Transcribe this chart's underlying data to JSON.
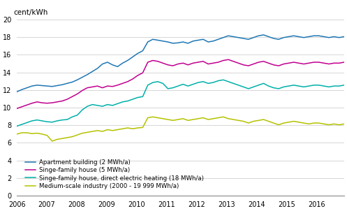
{
  "ylabel": "cent/kWh",
  "ylim": [
    0,
    20
  ],
  "yticks": [
    0,
    2,
    4,
    6,
    8,
    10,
    12,
    14,
    16,
    18,
    20
  ],
  "xlim_start": 2006.0,
  "xlim_end": 2016.92,
  "xtick_years": [
    2006,
    2007,
    2008,
    2009,
    2010,
    2011,
    2012,
    2013,
    2014,
    2015,
    2016
  ],
  "series": [
    {
      "label": "Apartment building (2 MWh/a)",
      "color": "#1f77b4",
      "data": [
        11.8,
        12.05,
        12.25,
        12.45,
        12.55,
        12.5,
        12.45,
        12.4,
        12.5,
        12.6,
        12.75,
        12.9,
        13.15,
        13.45,
        13.75,
        14.1,
        14.45,
        14.95,
        15.15,
        14.85,
        14.65,
        15.05,
        15.35,
        15.75,
        16.15,
        16.45,
        17.45,
        17.75,
        17.65,
        17.55,
        17.45,
        17.3,
        17.35,
        17.45,
        17.3,
        17.55,
        17.65,
        17.75,
        17.45,
        17.55,
        17.75,
        17.95,
        18.15,
        18.05,
        17.95,
        17.85,
        17.75,
        17.95,
        18.15,
        18.25,
        18.05,
        17.85,
        17.75,
        17.95,
        18.05,
        18.15,
        18.05,
        17.95,
        18.05,
        18.15,
        18.15,
        18.05,
        17.95,
        18.05,
        17.95,
        18.05
      ]
    },
    {
      "label": "Singe-family house (5 MWh/a)",
      "color": "#c0008f",
      "data": [
        9.9,
        10.1,
        10.3,
        10.5,
        10.65,
        10.55,
        10.5,
        10.55,
        10.65,
        10.75,
        10.95,
        11.25,
        11.55,
        11.95,
        12.25,
        12.35,
        12.45,
        12.25,
        12.45,
        12.4,
        12.55,
        12.75,
        12.95,
        13.25,
        13.65,
        13.95,
        15.15,
        15.35,
        15.25,
        15.05,
        14.85,
        14.75,
        14.95,
        15.05,
        14.85,
        15.05,
        15.15,
        15.25,
        14.95,
        15.05,
        15.15,
        15.35,
        15.45,
        15.25,
        15.05,
        14.85,
        14.75,
        14.95,
        15.15,
        15.25,
        15.05,
        14.85,
        14.75,
        14.95,
        15.05,
        15.15,
        15.05,
        14.95,
        15.05,
        15.15,
        15.15,
        15.05,
        14.95,
        15.05,
        15.05,
        15.15
      ]
    },
    {
      "label": "Singe-family house, direct electric heating (18 MWh/a)",
      "color": "#00b0aa",
      "data": [
        7.9,
        8.1,
        8.3,
        8.5,
        8.6,
        8.5,
        8.4,
        8.35,
        8.5,
        8.6,
        8.65,
        8.95,
        9.15,
        9.75,
        10.15,
        10.35,
        10.25,
        10.15,
        10.35,
        10.25,
        10.45,
        10.65,
        10.75,
        10.95,
        11.15,
        11.25,
        12.55,
        12.85,
        12.95,
        12.75,
        12.15,
        12.25,
        12.45,
        12.65,
        12.45,
        12.65,
        12.85,
        12.95,
        12.75,
        12.85,
        13.05,
        13.15,
        12.95,
        12.75,
        12.55,
        12.35,
        12.15,
        12.35,
        12.55,
        12.75,
        12.45,
        12.25,
        12.15,
        12.35,
        12.45,
        12.55,
        12.45,
        12.35,
        12.45,
        12.55,
        12.55,
        12.45,
        12.35,
        12.45,
        12.45,
        12.55
      ]
    },
    {
      "label": "Medium-scale industry (2000 - 19 999 MWh/a)",
      "color": "#b5c200",
      "data": [
        7.0,
        7.15,
        7.15,
        7.05,
        7.1,
        7.0,
        6.85,
        6.2,
        6.4,
        6.5,
        6.6,
        6.7,
        6.9,
        7.1,
        7.2,
        7.3,
        7.4,
        7.3,
        7.5,
        7.4,
        7.5,
        7.6,
        7.7,
        7.6,
        7.7,
        7.75,
        8.85,
        8.95,
        8.85,
        8.75,
        8.65,
        8.55,
        8.65,
        8.75,
        8.55,
        8.65,
        8.75,
        8.85,
        8.65,
        8.75,
        8.85,
        8.95,
        8.75,
        8.65,
        8.55,
        8.45,
        8.25,
        8.45,
        8.55,
        8.65,
        8.45,
        8.25,
        8.05,
        8.25,
        8.35,
        8.45,
        8.35,
        8.25,
        8.15,
        8.25,
        8.25,
        8.15,
        8.05,
        8.15,
        8.05,
        8.15
      ]
    }
  ],
  "grid_color": "#d0d0d0",
  "background_color": "#ffffff",
  "linewidth": 1.1,
  "tick_fontsize": 7,
  "legend_fontsize": 6.2
}
